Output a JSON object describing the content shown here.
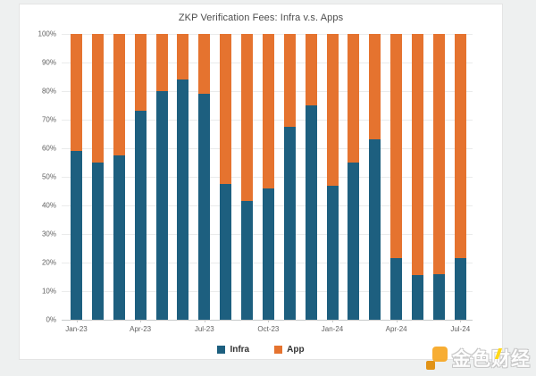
{
  "title": "ZKP Verification Fees: Infra v.s. Apps",
  "legend": [
    {
      "label": "Infra",
      "color": "#1d5f7f"
    },
    {
      "label": "App",
      "color": "#e5732f"
    }
  ],
  "watermark": {
    "text": "金色财经",
    "logo_color": "#f7a51d"
  },
  "colors": {
    "infra": "#1d5f7f",
    "app": "#e5732f",
    "gridline": "#eaebeb",
    "axis_line": "#c7c9c9",
    "page_background": "#eef0f0",
    "card_background": "#ffffff"
  },
  "chart_data": {
    "type": "bar",
    "stacked": true,
    "unit": "%",
    "title": "ZKP Verification Fees: Infra v.s. Apps",
    "categories": [
      "Jan-23",
      "Feb-23",
      "Mar-23",
      "Apr-23",
      "May-23",
      "Jun-23",
      "Jul-23",
      "Aug-23",
      "Sep-23",
      "Oct-23",
      "Nov-23",
      "Dec-23",
      "Jan-24",
      "Feb-24",
      "Mar-24",
      "Apr-24",
      "May-24",
      "Jun-24",
      "Jul-24"
    ],
    "x_tick_labels": [
      "Jan-23",
      "Apr-23",
      "Jul-23",
      "Oct-23",
      "Jan-24",
      "Apr-24",
      "Jul-24"
    ],
    "x_tick_every": 3,
    "series": [
      {
        "name": "Infra",
        "color": "#1d5f7f",
        "values": [
          59,
          55,
          57.5,
          73,
          80,
          84,
          79,
          47.5,
          41.5,
          46,
          67.5,
          75,
          47,
          55,
          63,
          21.5,
          15.5,
          16,
          21.5
        ]
      },
      {
        "name": "App",
        "color": "#e5732f",
        "values": [
          41,
          45,
          42.5,
          27,
          20,
          16,
          21,
          52.5,
          58.5,
          54,
          32.5,
          25,
          53,
          45,
          37,
          78.5,
          84.5,
          84,
          78.5
        ]
      }
    ],
    "ylim": [
      0,
      100
    ],
    "y_ticks": [
      0,
      10,
      20,
      30,
      40,
      50,
      60,
      70,
      80,
      90,
      100
    ],
    "y_tick_labels": [
      "0%",
      "10%",
      "20%",
      "30%",
      "40%",
      "50%",
      "60%",
      "70%",
      "80%",
      "90%",
      "100%"
    ],
    "grid": true,
    "legend_position": "bottom"
  }
}
